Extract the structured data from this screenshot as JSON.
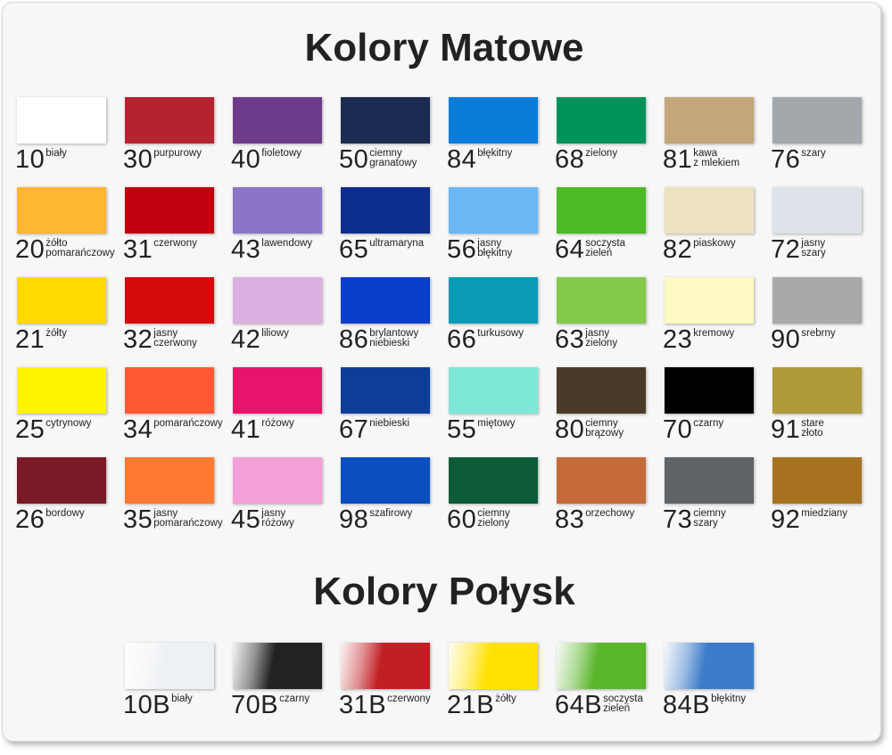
{
  "matte": {
    "title": "Kolory Matowe",
    "columns": 8,
    "swatches": [
      {
        "code": "10",
        "name": [
          "biały"
        ],
        "color": "#ffffff"
      },
      {
        "code": "30",
        "name": [
          "purpurowy"
        ],
        "color": "#b5242e"
      },
      {
        "code": "40",
        "name": [
          "fioletowy"
        ],
        "color": "#6e3b8c"
      },
      {
        "code": "50",
        "name": [
          "ciemny",
          "granatowy"
        ],
        "color": "#1c2b52"
      },
      {
        "code": "84",
        "name": [
          "błękitny"
        ],
        "color": "#0a7ddb"
      },
      {
        "code": "68",
        "name": [
          "zielony"
        ],
        "color": "#00935a"
      },
      {
        "code": "81",
        "name": [
          "kawa",
          "z mlekiem"
        ],
        "color": "#c3a67a"
      },
      {
        "code": "76",
        "name": [
          "szary"
        ],
        "color": "#a3a8ad"
      },
      {
        "code": "20",
        "name": [
          "żółto",
          "pomarańczowy"
        ],
        "color": "#ffb630"
      },
      {
        "code": "31",
        "name": [
          "czerwony"
        ],
        "color": "#c0000f"
      },
      {
        "code": "43",
        "name": [
          "lawendowy"
        ],
        "color": "#8a75c8"
      },
      {
        "code": "65",
        "name": [
          "ultramaryna"
        ],
        "color": "#0d2e8c"
      },
      {
        "code": "56",
        "name": [
          "jasny",
          "błękitny"
        ],
        "color": "#6cb8f5"
      },
      {
        "code": "64",
        "name": [
          "soczysta",
          "zieleń"
        ],
        "color": "#4cbb26"
      },
      {
        "code": "82",
        "name": [
          "piaskowy"
        ],
        "color": "#ece2c0"
      },
      {
        "code": "72",
        "name": [
          "jasny",
          "szary"
        ],
        "color": "#dde3e8"
      },
      {
        "code": "21",
        "name": [
          "żółty"
        ],
        "color": "#ffd900"
      },
      {
        "code": "32",
        "name": [
          "jasny",
          "czerwony"
        ],
        "color": "#d40a0a"
      },
      {
        "code": "42",
        "name": [
          "liliowy"
        ],
        "color": "#dbb0e0"
      },
      {
        "code": "86",
        "name": [
          "brylantowy",
          "niebieski"
        ],
        "color": "#0a3fc9"
      },
      {
        "code": "66",
        "name": [
          "turkusowy"
        ],
        "color": "#0a9bb8"
      },
      {
        "code": "63",
        "name": [
          "jasny",
          "zielony"
        ],
        "color": "#84c94a"
      },
      {
        "code": "23",
        "name": [
          "kremowy"
        ],
        "color": "#fdf9c2"
      },
      {
        "code": "90",
        "name": [
          "srebrny"
        ],
        "color": "#a9a9a9"
      },
      {
        "code": "25",
        "name": [
          "cytrynowy"
        ],
        "color": "#fff500"
      },
      {
        "code": "34",
        "name": [
          "pomarańczowy"
        ],
        "color": "#ff5a32"
      },
      {
        "code": "41",
        "name": [
          "różowy"
        ],
        "color": "#e8136b"
      },
      {
        "code": "67",
        "name": [
          "niebieski"
        ],
        "color": "#0b3d99"
      },
      {
        "code": "55",
        "name": [
          "miętowy"
        ],
        "color": "#7ee8d8"
      },
      {
        "code": "80",
        "name": [
          "ciemny",
          "brązowy"
        ],
        "color": "#4c3a28"
      },
      {
        "code": "70",
        "name": [
          "czarny"
        ],
        "color": "#000000"
      },
      {
        "code": "91",
        "name": [
          "stare",
          "złoto"
        ],
        "color": "#b09a3a"
      },
      {
        "code": "26",
        "name": [
          "bordowy"
        ],
        "color": "#7a1a26"
      },
      {
        "code": "35",
        "name": [
          "jasny",
          "pomarańczowy"
        ],
        "color": "#ff7a30"
      },
      {
        "code": "45",
        "name": [
          "jasny",
          "różowy"
        ],
        "color": "#f59fd8"
      },
      {
        "code": "98",
        "name": [
          "szafirowy"
        ],
        "color": "#0b4fbf"
      },
      {
        "code": "60",
        "name": [
          "ciemny",
          "zielony"
        ],
        "color": "#0d5c37"
      },
      {
        "code": "83",
        "name": [
          "orzechowy"
        ],
        "color": "#c56b3a"
      },
      {
        "code": "73",
        "name": [
          "ciemny",
          "szary"
        ],
        "color": "#5f6266"
      },
      {
        "code": "92",
        "name": [
          "miedziany"
        ],
        "color": "#a7721f"
      }
    ]
  },
  "gloss": {
    "title": "Kolory Połysk",
    "swatches": [
      {
        "code": "10B",
        "name": [
          "biały"
        ],
        "color": "#eef1f4"
      },
      {
        "code": "70B",
        "name": [
          "czarny"
        ],
        "color": "#222222"
      },
      {
        "code": "31B",
        "name": [
          "czerwony"
        ],
        "color": "#c01f24"
      },
      {
        "code": "21B",
        "name": [
          "żółty"
        ],
        "color": "#ffe100"
      },
      {
        "code": "64B",
        "name": [
          "soczysta",
          "zieleń"
        ],
        "color": "#59b52a"
      },
      {
        "code": "84B",
        "name": [
          "błękitny"
        ],
        "color": "#3d7cc8"
      }
    ]
  }
}
